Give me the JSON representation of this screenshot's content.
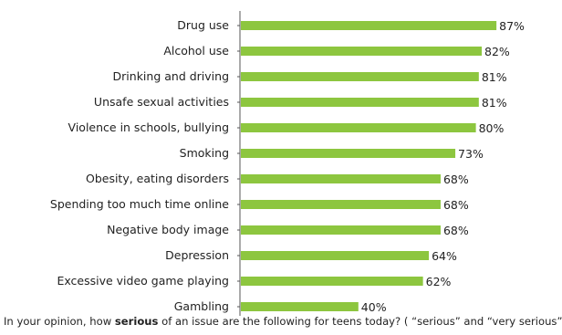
{
  "chart_data": {
    "type": "bar",
    "orientation": "horizontal",
    "categories": [
      "Drug use",
      "Alcohol use",
      "Drinking and driving",
      "Unsafe sexual activities",
      "Violence in schools, bullying",
      "Smoking",
      "Obesity, eating disorders",
      "Spending too much time online",
      "Negative body image",
      "Depression",
      "Excessive video game playing",
      "Gambling"
    ],
    "values": [
      87,
      82,
      81,
      81,
      80,
      73,
      68,
      68,
      68,
      64,
      62,
      40
    ],
    "value_labels": [
      "87%",
      "82%",
      "81%",
      "81%",
      "80%",
      "73%",
      "68%",
      "68%",
      "68%",
      "64%",
      "62%",
      "40%"
    ],
    "xlim": [
      0,
      100
    ],
    "bar_color": "#8dc63f",
    "grid": false,
    "legend": "none"
  },
  "caption": {
    "before": "In your opinion, how ",
    "bold": "serious",
    "after": " of an issue are the following for teens today? ( “serious” and “very serious”)"
  }
}
